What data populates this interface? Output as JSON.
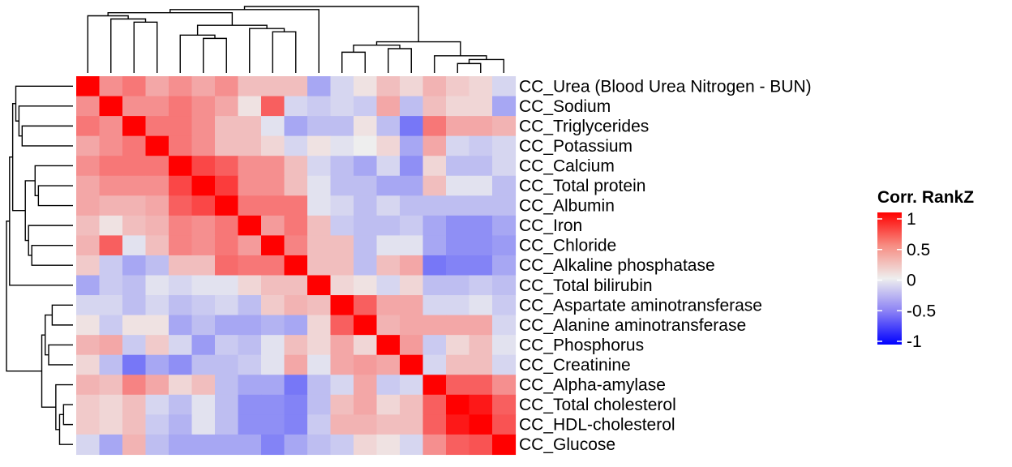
{
  "chart_data": {
    "type": "heatmap",
    "title": "",
    "labels": [
      "CC_Urea (Blood Urea Nitrogen - BUN)",
      "CC_Sodium",
      "CC_Triglycerides",
      "CC_Potassium",
      "CC_Calcium",
      "CC_Total protein",
      "CC_Albumin",
      "CC_Iron",
      "CC_Chloride",
      "CC_Alkaline phosphatase",
      "CC_Total bilirubin",
      "CC_Aspartate aminotransferase",
      "CC_Alanine aminotransferase",
      "CC_Phosphorus",
      "CC_Creatinine",
      "CC_Alpha-amylase",
      "CC_Total cholesterol",
      "CC_HDL-cholesterol",
      "CC_Glucose"
    ],
    "matrix": [
      [
        1,
        0.4,
        0.5,
        0.3,
        0.4,
        0.3,
        0.4,
        0.2,
        0.2,
        0.2,
        -0.3,
        -0.1,
        0.05,
        0.2,
        0.1,
        0.25,
        0.15,
        0.1,
        -0.1
      ],
      [
        0.4,
        1,
        0.4,
        0.4,
        0.5,
        0.4,
        0.3,
        0.05,
        0.6,
        -0.1,
        -0.15,
        -0.1,
        -0.15,
        0.3,
        -0.2,
        0.2,
        0.1,
        0.1,
        -0.3
      ],
      [
        0.5,
        0.4,
        1,
        0.5,
        0.5,
        0.4,
        0.2,
        0.2,
        -0.05,
        -0.3,
        -0.2,
        -0.2,
        0.05,
        -0.2,
        -0.5,
        0.5,
        0.3,
        0.3,
        0.25
      ],
      [
        0.3,
        0.4,
        0.5,
        1,
        0.5,
        0.4,
        0.2,
        0.2,
        0.1,
        -0.1,
        0.05,
        -0.05,
        0,
        0.1,
        -0.3,
        0.3,
        -0.1,
        -0.15,
        -0.1
      ],
      [
        0.4,
        0.5,
        0.5,
        0.5,
        1,
        0.7,
        0.6,
        0.4,
        0.4,
        0.2,
        -0.1,
        -0.2,
        -0.3,
        -0.1,
        -0.4,
        0.1,
        -0.2,
        -0.2,
        -0.1
      ],
      [
        0.3,
        0.4,
        0.4,
        0.4,
        0.7,
        1,
        0.75,
        0.4,
        0.4,
        0.2,
        -0.05,
        -0.2,
        -0.2,
        -0.3,
        -0.3,
        0.2,
        -0.05,
        -0.05,
        -0.2
      ],
      [
        0.3,
        0.25,
        0.25,
        0.3,
        0.6,
        0.7,
        1,
        0.5,
        0.5,
        0.5,
        -0.05,
        -0.1,
        -0.2,
        -0.1,
        -0.2,
        -0.2,
        -0.2,
        -0.2,
        -0.2
      ],
      [
        0.2,
        0.05,
        0.2,
        0.25,
        0.45,
        0.4,
        0.5,
        1,
        0.35,
        0.5,
        0.2,
        -0.15,
        -0.2,
        -0.2,
        -0.15,
        -0.3,
        -0.4,
        -0.4,
        -0.3
      ],
      [
        0.25,
        0.6,
        -0.05,
        0.2,
        0.45,
        0.4,
        0.5,
        0.35,
        1,
        0.45,
        0.2,
        0.2,
        -0.2,
        -0.05,
        -0.05,
        -0.3,
        -0.4,
        -0.4,
        -0.35
      ],
      [
        0.15,
        -0.15,
        -0.3,
        -0.2,
        0.2,
        0.2,
        0.55,
        0.5,
        0.5,
        1,
        0.2,
        0.2,
        -0.2,
        0.2,
        0.3,
        -0.5,
        -0.45,
        -0.45,
        -0.3
      ],
      [
        -0.3,
        -0.15,
        -0.2,
        -0.05,
        -0.1,
        -0.05,
        -0.05,
        0.1,
        0.2,
        0.2,
        1,
        0.1,
        0.05,
        -0.1,
        0.1,
        -0.2,
        -0.2,
        -0.15,
        -0.2
      ],
      [
        -0.1,
        -0.1,
        -0.2,
        -0.1,
        -0.2,
        -0.15,
        -0.1,
        -0.2,
        0.15,
        0.25,
        0.2,
        1,
        0.6,
        0.3,
        0.3,
        -0.1,
        -0.1,
        -0.05,
        -0.15
      ],
      [
        0.05,
        -0.15,
        0.05,
        0.05,
        -0.3,
        -0.2,
        -0.3,
        -0.3,
        -0.25,
        -0.3,
        0.1,
        0.6,
        1,
        0.25,
        0.3,
        0.3,
        0.3,
        0.3,
        -0.1
      ],
      [
        0.25,
        0.3,
        -0.15,
        0.15,
        -0.1,
        -0.35,
        -0.15,
        -0.2,
        -0.05,
        0.2,
        0.1,
        0.3,
        0.1,
        1,
        0.35,
        -0.15,
        0.1,
        0.2,
        -0.05
      ],
      [
        0.1,
        -0.2,
        -0.5,
        -0.3,
        -0.4,
        -0.2,
        -0.2,
        -0.15,
        -0.05,
        0.3,
        -0.05,
        0.3,
        0.35,
        0.3,
        1,
        -0.1,
        0.2,
        0.2,
        -0.1
      ],
      [
        0.25,
        0.2,
        0.45,
        0.3,
        0.1,
        0.2,
        -0.2,
        -0.3,
        -0.3,
        -0.5,
        -0.2,
        -0.1,
        0.3,
        -0.15,
        -0.1,
        1,
        0.6,
        0.6,
        0.4
      ],
      [
        0.15,
        0.1,
        0.2,
        -0.1,
        -0.2,
        -0.05,
        -0.2,
        -0.4,
        -0.4,
        -0.45,
        -0.2,
        0.2,
        0.3,
        0.1,
        0.2,
        0.6,
        1,
        0.9,
        0.6
      ],
      [
        0.15,
        0.1,
        0.2,
        -0.15,
        -0.25,
        -0.05,
        -0.2,
        -0.4,
        -0.4,
        -0.45,
        -0.15,
        0.25,
        0.25,
        0.2,
        0.2,
        0.6,
        0.9,
        1,
        0.65
      ],
      [
        -0.1,
        -0.3,
        0.25,
        -0.2,
        -0.3,
        -0.3,
        -0.3,
        -0.3,
        -0.45,
        -0.3,
        -0.2,
        -0.15,
        0.1,
        0.05,
        -0.1,
        0.4,
        0.6,
        0.65,
        1
      ]
    ],
    "color_scale": {
      "title": "Corr. RankZ",
      "min": -1,
      "max": 1,
      "low_color": "#0000FF",
      "mid_color": "#EEEEEE",
      "high_color": "#FF0000",
      "ticks": [
        1,
        0.5,
        0,
        -0.5,
        -1
      ],
      "tick_labels": [
        "1",
        "0.5",
        "0",
        "-0.5",
        "-1"
      ]
    },
    "legend_placement": "right",
    "dendrogram": {
      "merge_order": [
        [
          16,
          17
        ],
        [
          16,
          18
        ],
        [
          15,
          16
        ],
        [
          11,
          12
        ],
        [
          13,
          14
        ],
        [
          11,
          13
        ],
        [
          11,
          15
        ],
        [
          5,
          6
        ],
        [
          4,
          5
        ],
        [
          8,
          9
        ],
        [
          7,
          8
        ],
        [
          4,
          7
        ],
        [
          2,
          3
        ],
        [
          1,
          2
        ],
        [
          0,
          1
        ],
        [
          0,
          4
        ],
        [
          0,
          10
        ],
        [
          0,
          11
        ]
      ]
    }
  }
}
